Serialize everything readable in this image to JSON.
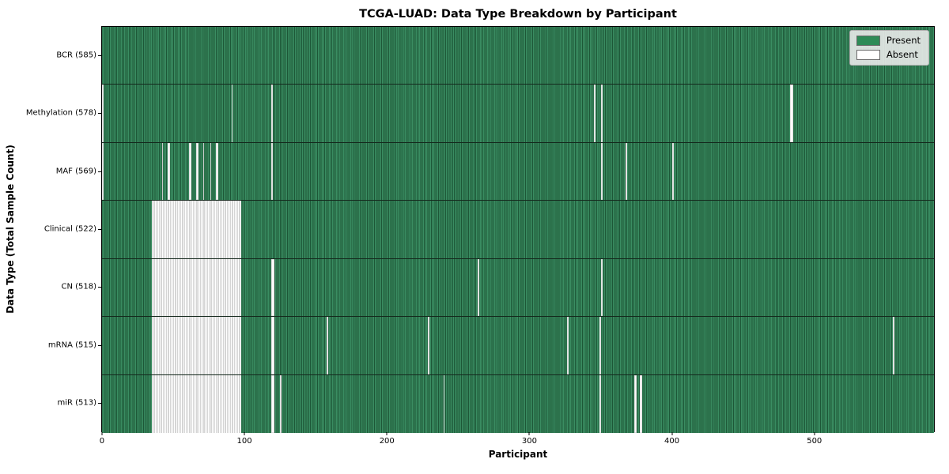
{
  "title": "TCGA-LUAD: Data Type Breakdown by Participant",
  "colors": {
    "present": "#3a8d62",
    "present_dark": "#1d5737",
    "present_legend": "#2e8b57",
    "absent": "#ffffff",
    "absent_edge": "#ababab"
  },
  "chart_data": {
    "type": "heatmap",
    "title": "TCGA-LUAD: Data Type Breakdown by Participant",
    "xlabel": "Participant",
    "ylabel": "Data Type (Total Sample Count)",
    "n_participants": 585,
    "xlim": [
      -0.5,
      584.5
    ],
    "x_ticks": [
      0,
      100,
      200,
      300,
      400,
      500
    ],
    "grid": false,
    "legend_position": "upper right",
    "legend": [
      {
        "label": "Present",
        "color": "#2e8b57"
      },
      {
        "label": "Absent",
        "color": "#ffffff"
      }
    ],
    "rows": [
      {
        "label": "BCR (585)",
        "data_type": "BCR",
        "present_count": 585,
        "absent_count": 0,
        "absent_ranges": []
      },
      {
        "label": "Methylation (578)",
        "data_type": "Methylation",
        "present_count": 578,
        "absent_count": 7,
        "absent_ranges": [
          [
            0,
            0
          ],
          [
            91,
            91
          ],
          [
            119,
            119
          ],
          [
            346,
            346
          ],
          [
            351,
            351
          ],
          [
            484,
            485
          ]
        ]
      },
      {
        "label": "MAF (569)",
        "data_type": "MAF",
        "present_count": 569,
        "absent_count": 16,
        "absent_ranges": [
          [
            0,
            0
          ],
          [
            42,
            42
          ],
          [
            46,
            47
          ],
          [
            61,
            62
          ],
          [
            66,
            67
          ],
          [
            71,
            71
          ],
          [
            76,
            76
          ],
          [
            80,
            81
          ],
          [
            119,
            119
          ],
          [
            351,
            351
          ],
          [
            368,
            368
          ],
          [
            401,
            401
          ]
        ]
      },
      {
        "label": "Clinical (522)",
        "data_type": "Clinical",
        "present_count": 522,
        "absent_count": 63,
        "absent_ranges": [
          [
            35,
            97
          ]
        ]
      },
      {
        "label": "CN (518)",
        "data_type": "CN",
        "present_count": 518,
        "absent_count": 67,
        "absent_ranges": [
          [
            35,
            97
          ],
          [
            119,
            120
          ],
          [
            264,
            264
          ],
          [
            351,
            351
          ]
        ]
      },
      {
        "label": "mRNA (515)",
        "data_type": "mRNA",
        "present_count": 515,
        "absent_count": 70,
        "absent_ranges": [
          [
            35,
            97
          ],
          [
            119,
            120
          ],
          [
            158,
            158
          ],
          [
            229,
            229
          ],
          [
            327,
            327
          ],
          [
            350,
            350
          ],
          [
            556,
            556
          ]
        ]
      },
      {
        "label": "miR (513)",
        "data_type": "miR",
        "present_count": 513,
        "absent_count": 72,
        "absent_ranges": [
          [
            35,
            97
          ],
          [
            119,
            120
          ],
          [
            125,
            125
          ],
          [
            240,
            240
          ],
          [
            350,
            350
          ],
          [
            374,
            375
          ],
          [
            378,
            379
          ]
        ]
      }
    ]
  }
}
